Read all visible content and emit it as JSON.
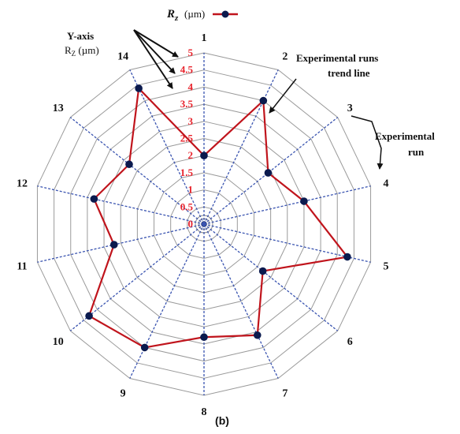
{
  "chart_data": {
    "type": "radar",
    "categories": [
      "1",
      "2",
      "3",
      "4",
      "5",
      "6",
      "7",
      "8",
      "9",
      "10",
      "11",
      "12",
      "13",
      "14"
    ],
    "series": [
      {
        "name": "Rz (µm)",
        "legend_symbol": "R",
        "legend_subscript": "z",
        "legend_unit": "(µm)",
        "values": [
          2.0,
          4.0,
          2.4,
          3.0,
          4.3,
          2.2,
          3.6,
          3.3,
          4.0,
          4.3,
          2.7,
          3.3,
          2.8,
          4.4
        ],
        "color": "#c0141c",
        "marker_color": "#0b1a4e"
      }
    ],
    "radial_ticks": [
      "0",
      "0.5",
      "1",
      "1.5",
      "2",
      "2.5",
      "3",
      "3.5",
      "4",
      "4.5",
      "5"
    ],
    "rmax": 5,
    "grid": true,
    "colors": {
      "ring": "#9a9a9a",
      "spoke": "#3a54b0",
      "tick_label": "#e8222b",
      "text": "#111111"
    },
    "annotations": {
      "y_axis_title": "Y-axis",
      "y_axis_unit": "R",
      "y_axis_unit_sub": "Z",
      "y_axis_unit_tail": " (µm)",
      "trend_line_1": "Experimental runs",
      "trend_line_2": "trend line",
      "run_1": "Experimental",
      "run_2": "run"
    },
    "panel_label": "(b)"
  }
}
